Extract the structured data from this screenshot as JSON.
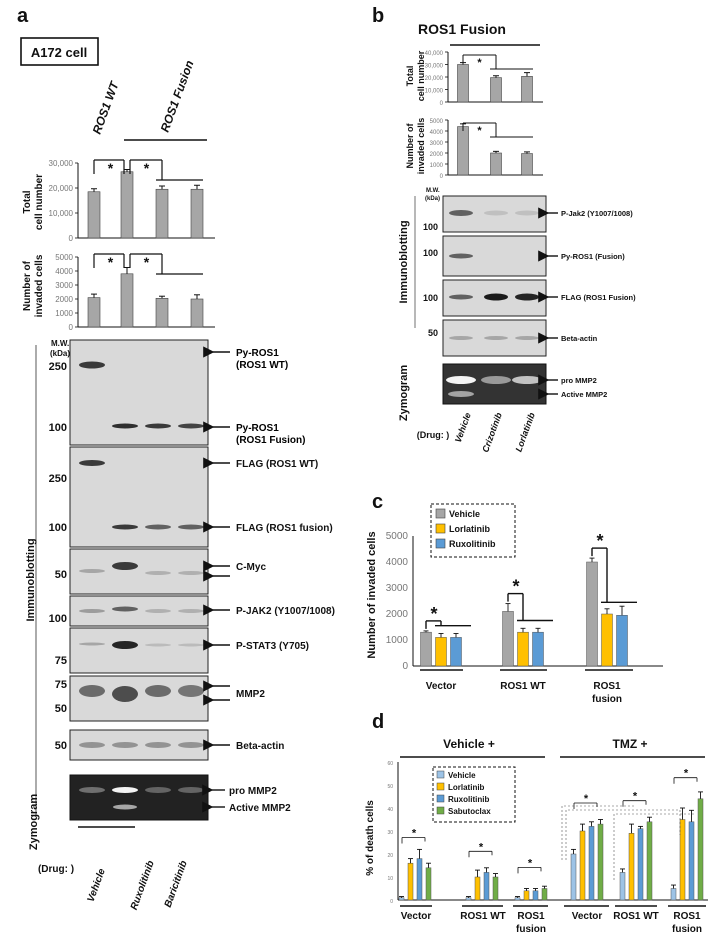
{
  "panels": {
    "a": "a",
    "b": "b",
    "c": "c",
    "d": "d"
  },
  "a": {
    "cell_box": "A172 cell",
    "group_wt": "ROS1 WT",
    "group_fusion": "ROS1 Fusion",
    "ylabel_total": [
      "Total",
      "cell number"
    ],
    "ylabel_invaded": [
      "Number of",
      "invaded cells"
    ],
    "immunoblotting": "Immunoblotting",
    "zymogram": "Zymogram",
    "mw": [
      "M.W.",
      "(kDa)"
    ],
    "drug_label": "(Drug: )",
    "drugs": [
      "Vehicle",
      "Ruxolitinib",
      "Baricitinib"
    ],
    "blots": [
      {
        "mw": [
          "250",
          "100"
        ],
        "labels": [
          "Py-ROS1 (ROS1 WT)",
          "Py-ROS1 (ROS1 Fusion)"
        ]
      },
      {
        "mw": [
          "250",
          "100"
        ],
        "labels": [
          "FLAG (ROS1 WT)",
          "FLAG (ROS1 fusion)"
        ]
      },
      {
        "mw": [
          "50"
        ],
        "labels": [
          "C-Myc"
        ]
      },
      {
        "mw": [
          "100"
        ],
        "labels": [
          "P-JAK2 (Y1007/1008)"
        ]
      },
      {
        "mw": [
          "75"
        ],
        "labels": [
          "P-STAT3 (Y705)"
        ]
      },
      {
        "mw": [
          "75",
          "50"
        ],
        "labels": [
          "MMP2"
        ]
      },
      {
        "mw": [
          "50"
        ],
        "labels": [
          "Beta-actin"
        ]
      }
    ],
    "zymo_labels": [
      "pro MMP2",
      "Active MMP2"
    ]
  },
  "b": {
    "title": "ROS1 Fusion",
    "ylabel_total": [
      "Total",
      "cell number"
    ],
    "ylabel_invaded": [
      "Number of",
      "invaded cells"
    ],
    "immunoblotting": "Immunoblotting",
    "zymogram": "Zymogram",
    "mw": [
      "M.W.",
      "(kDa)"
    ],
    "drug_label": "(Drug: )",
    "drugs": [
      "Vehicle",
      "Crizotinib",
      "Lorlatinib"
    ],
    "blots": [
      {
        "mw": [
          "100"
        ],
        "labels": [
          "P-Jak2 (Y1007/1008)"
        ]
      },
      {
        "mw": [
          "100"
        ],
        "labels": [
          "Py-ROS1 (Fusion)"
        ]
      },
      {
        "mw": [
          "100"
        ],
        "labels": [
          "FLAG (ROS1 Fusion)"
        ]
      },
      {
        "mw": [
          "50"
        ],
        "labels": [
          "Beta-actin"
        ]
      }
    ],
    "zymo_labels": [
      "pro MMP2",
      "Active MMP2"
    ]
  },
  "c": {
    "legend": [
      "Vehicle",
      "Lorlatinib",
      "Ruxolitinib"
    ],
    "group_labels": [
      "Vector",
      "ROS1 WT",
      "ROS1",
      "fusion"
    ]
  },
  "d": {
    "header_vehicle": "Vehicle +",
    "header_tmz": "TMZ +",
    "legend": [
      "Vehicle",
      "Lorlatinib",
      "Ruxolitinib",
      "Sabutoclax"
    ],
    "group_labels": [
      "Vector",
      "ROS1 WT",
      "ROS1",
      "fusion",
      "Vector",
      "ROS1 WT",
      "ROS1",
      "fusion"
    ]
  },
  "colors": {
    "gray": "#a6a6a6",
    "yellow": "#ffc000",
    "blue": "#5b9bd5",
    "green": "#70ad47",
    "lightblue": "#9dc3e6"
  },
  "chart_data": [
    {
      "type": "bar",
      "id": "a-total",
      "categories": [
        "ROS1 WT",
        "ROS1 Fusion Vehicle",
        "Ruxolitinib",
        "Baricitinib"
      ],
      "values": [
        18500,
        26500,
        19500,
        19500
      ],
      "errors": [
        1200,
        900,
        1300,
        1600
      ],
      "ylim": [
        0,
        30000
      ],
      "yticks": [
        "0",
        "10,000",
        "20,000",
        "30,000"
      ],
      "significance": "*"
    },
    {
      "type": "bar",
      "id": "a-invaded",
      "categories": [
        "ROS1 WT",
        "ROS1 Fusion Vehicle",
        "Ruxolitinib",
        "Baricitinib"
      ],
      "values": [
        2100,
        3800,
        2050,
        2000
      ],
      "errors": [
        250,
        450,
        150,
        300
      ],
      "ylim": [
        0,
        5000
      ],
      "yticks": [
        "0",
        "1000",
        "2000",
        "3000",
        "4000",
        "5000"
      ],
      "significance": "*"
    },
    {
      "type": "bar",
      "id": "b-total",
      "categories": [
        "Vehicle",
        "Crizotinib",
        "Lorlatinib"
      ],
      "values": [
        30000,
        19500,
        20500
      ],
      "errors": [
        1500,
        1500,
        3000
      ],
      "ylim": [
        0,
        40000
      ],
      "yticks": [
        "0",
        "10,000",
        "20,000",
        "30,000",
        "40,000"
      ],
      "significance": "*"
    },
    {
      "type": "bar",
      "id": "b-invaded",
      "categories": [
        "Vehicle",
        "Crizotinib",
        "Lorlatinib"
      ],
      "values": [
        4400,
        2000,
        1950
      ],
      "errors": [
        250,
        150,
        150
      ],
      "ylim": [
        0,
        5000
      ],
      "yticks": [
        "0",
        "1000",
        "2000",
        "3000",
        "4000",
        "5000"
      ],
      "significance": "*"
    },
    {
      "type": "bar",
      "id": "c",
      "categories": [
        "Vector",
        "ROS1 WT",
        "ROS1 fusion"
      ],
      "series": [
        {
          "name": "Vehicle",
          "values": [
            1300,
            2100,
            4000
          ],
          "errors": [
            50,
            300,
            150
          ]
        },
        {
          "name": "Lorlatinib",
          "values": [
            1100,
            1300,
            2000
          ],
          "errors": [
            150,
            150,
            200
          ]
        },
        {
          "name": "Ruxolitinib",
          "values": [
            1100,
            1300,
            1950
          ],
          "errors": [
            150,
            150,
            350
          ]
        }
      ],
      "ylabel": "Number of invaded cells",
      "ylim": [
        0,
        5000
      ],
      "yticks": [
        "0",
        "1000",
        "2000",
        "3000",
        "4000",
        "5000"
      ],
      "significance": "*"
    },
    {
      "type": "bar",
      "id": "d",
      "categories": [
        "Vehicle + Vector",
        "Vehicle + ROS1 WT",
        "Vehicle + ROS1 fusion",
        "TMZ + Vector",
        "TMZ + ROS1 WT",
        "TMZ + ROS1 fusion"
      ],
      "series": [
        {
          "name": "Vehicle",
          "values": [
            1,
            1,
            1,
            20,
            12,
            5
          ],
          "errors": [
            0.5,
            0.5,
            0.5,
            2,
            1.5,
            1.5
          ]
        },
        {
          "name": "Lorlatinib",
          "values": [
            16,
            10,
            4,
            30,
            29,
            35
          ],
          "errors": [
            2,
            3,
            1,
            3,
            4,
            5
          ]
        },
        {
          "name": "Ruxolitinib",
          "values": [
            18,
            12,
            4,
            32,
            31,
            34
          ],
          "errors": [
            4,
            2,
            1,
            2,
            1,
            5
          ]
        },
        {
          "name": "Sabutoclax",
          "values": [
            14,
            10,
            5,
            33,
            34,
            44
          ],
          "errors": [
            2,
            1.5,
            1,
            2,
            2,
            3
          ]
        }
      ],
      "ylabel": "% of death cells",
      "ylim": [
        0,
        60
      ],
      "yticks": [
        "0",
        "10",
        "20",
        "30",
        "40",
        "50",
        "60"
      ],
      "significance": "*"
    }
  ]
}
